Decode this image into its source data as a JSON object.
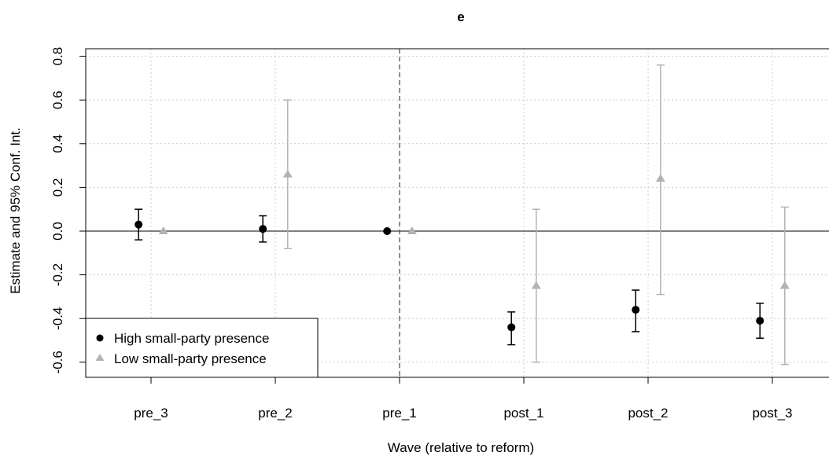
{
  "chart_data": {
    "type": "scatter",
    "title": "e",
    "xlabel": "Wave (relative to reform)",
    "ylabel": "Estimate and 95% Conf. Int.",
    "categories": [
      "pre_3",
      "pre_2",
      "pre_1",
      "post_1",
      "post_2",
      "post_3"
    ],
    "ylim": [
      -0.65,
      0.82
    ],
    "yticks": [
      -0.6,
      -0.4,
      -0.2,
      0.0,
      0.2,
      0.4,
      0.6,
      0.8
    ],
    "ytick_labels": [
      "-0.6",
      "-0.4",
      "-0.2",
      "0.0",
      "0.2",
      "0.4",
      "0.6",
      "0.8"
    ],
    "grid": true,
    "reference_line_y": 0,
    "reform_line_after": "pre_1",
    "legend_position": "bottom-left",
    "series": [
      {
        "name": "High small-party presence",
        "marker": "circle",
        "color": "#000000",
        "offset": -0.1,
        "values": [
          0.03,
          0.01,
          0.0,
          -0.44,
          -0.36,
          -0.41
        ],
        "lower": [
          -0.04,
          -0.05,
          null,
          -0.52,
          -0.46,
          -0.49
        ],
        "upper": [
          0.1,
          0.07,
          null,
          -0.37,
          -0.27,
          -0.33
        ]
      },
      {
        "name": "Low small-party presence",
        "marker": "triangle",
        "color": "#b3b3b3",
        "offset": 0.1,
        "values": [
          0.0,
          0.26,
          0.0,
          -0.25,
          0.24,
          -0.25
        ],
        "lower": [
          null,
          -0.08,
          null,
          -0.6,
          -0.29,
          -0.61
        ],
        "upper": [
          null,
          0.6,
          null,
          0.1,
          0.76,
          0.11
        ]
      }
    ]
  }
}
